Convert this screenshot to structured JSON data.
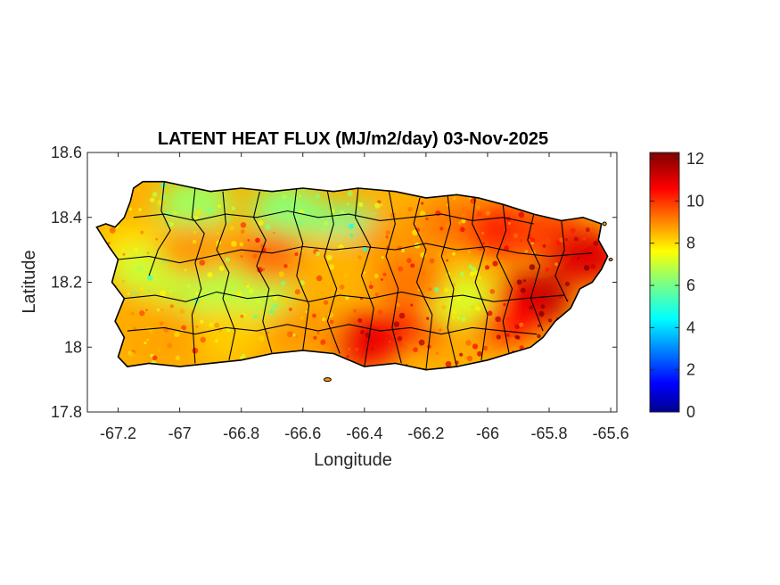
{
  "chart_data": {
    "type": "heatmap",
    "title": "LATENT HEAT FLUX (MJ/m2/day) 03-Nov-2025",
    "xlabel": "Longitude",
    "ylabel": "Latitude",
    "xlim": [
      -67.3,
      -65.58
    ],
    "ylim": [
      17.8,
      18.6
    ],
    "x_ticks": [
      -67.2,
      -67,
      -66.8,
      -66.6,
      -66.4,
      -66.2,
      -66,
      -65.8,
      -65.6
    ],
    "x_tick_labels": [
      "-67.2",
      "-67",
      "-66.8",
      "-66.6",
      "-66.4",
      "-66.2",
      "-66",
      "-65.8",
      "-65.6"
    ],
    "y_ticks": [
      17.8,
      18,
      18.2,
      18.4,
      18.6
    ],
    "y_tick_labels": [
      "17.8",
      "18",
      "18.2",
      "18.4",
      "18.6"
    ],
    "colorbar": {
      "colormap": "jet",
      "min": 0,
      "max": 12.3,
      "ticks": [
        0,
        2,
        4,
        6,
        8,
        10,
        12
      ],
      "tick_labels": [
        "0",
        "2",
        "4",
        "6",
        "8",
        "10",
        "12"
      ]
    },
    "grid": false,
    "region": "Puerto Rico (municipality boundaries overlaid)",
    "zones": [
      {
        "lon": -66.45,
        "lat": 18.36,
        "value": 6.0
      },
      {
        "lon": -66.65,
        "lat": 18.42,
        "value": 6.3
      },
      {
        "lon": -66.95,
        "lat": 18.44,
        "value": 6.5
      },
      {
        "lon": -67.15,
        "lat": 18.3,
        "value": 8.0
      },
      {
        "lon": -67.1,
        "lat": 18.22,
        "value": 7.0
      },
      {
        "lon": -66.9,
        "lat": 18.18,
        "value": 6.8
      },
      {
        "lon": -66.75,
        "lat": 18.17,
        "value": 6.8
      },
      {
        "lon": -66.95,
        "lat": 18.3,
        "value": 8.8
      },
      {
        "lon": -66.7,
        "lat": 18.28,
        "value": 9.3
      },
      {
        "lon": -66.5,
        "lat": 18.27,
        "value": 8.5
      },
      {
        "lon": -66.3,
        "lat": 18.33,
        "value": 8.8
      },
      {
        "lon": -66.1,
        "lat": 18.38,
        "value": 9.2
      },
      {
        "lon": -65.95,
        "lat": 18.36,
        "value": 10.2
      },
      {
        "lon": -65.8,
        "lat": 18.35,
        "value": 9.8
      },
      {
        "lon": -65.68,
        "lat": 18.28,
        "value": 11.0
      },
      {
        "lon": -65.85,
        "lat": 18.15,
        "value": 11.4
      },
      {
        "lon": -65.95,
        "lat": 18.1,
        "value": 10.6
      },
      {
        "lon": -66.2,
        "lat": 18.1,
        "value": 10.3
      },
      {
        "lon": -66.4,
        "lat": 18.02,
        "value": 10.8
      },
      {
        "lon": -66.6,
        "lat": 18.05,
        "value": 8.8
      },
      {
        "lon": -66.85,
        "lat": 18.04,
        "value": 8.2
      },
      {
        "lon": -67.05,
        "lat": 18.03,
        "value": 8.7
      },
      {
        "lon": -67.18,
        "lat": 18.1,
        "value": 8.6
      },
      {
        "lon": -66.1,
        "lat": 18.15,
        "value": 7.2
      },
      {
        "lon": -66.25,
        "lat": 18.2,
        "value": 9.2
      }
    ]
  }
}
